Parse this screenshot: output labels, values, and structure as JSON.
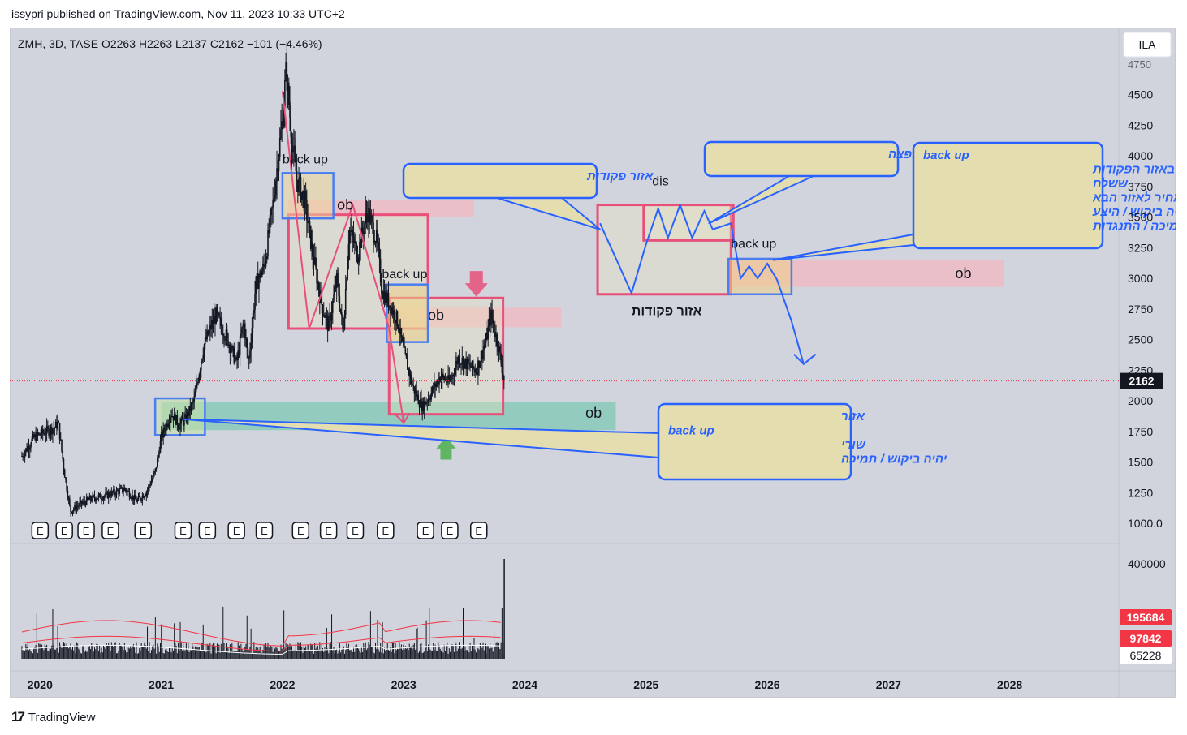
{
  "header": {
    "published": "issypri published on TradingView.com, Nov 11, 2023 10:33 UTC+2"
  },
  "footer": {
    "brand": "TradingView"
  },
  "chart_data": {
    "type": "candlestick",
    "legend_text": "ZMH, 3D, TASE  O2263  H2263  L2137  C2162  −101 (−4.46%)",
    "currency": "ILA",
    "ohlc": {
      "open": 2263,
      "high": 2263,
      "low": 2137,
      "close": 2162,
      "change": -101,
      "change_pct": -4.46
    },
    "last_price_label": "2162",
    "last_price": 2162,
    "price_axis": {
      "ticks": [
        4750,
        4500,
        4250,
        4000,
        3750,
        3500,
        3250,
        3000,
        2750,
        2500,
        2250,
        2000,
        1750,
        1500,
        1250,
        1000
      ],
      "tick_labels": [
        "4750",
        "4500",
        "4250",
        "4000",
        "3750",
        "3500",
        "3250",
        "3000",
        "2750",
        "2500",
        "2250",
        "2000",
        "1750",
        "1500",
        "1250",
        "1000.0"
      ]
    },
    "time_axis": {
      "labels": [
        "2020",
        "2021",
        "2022",
        "2023",
        "2024",
        "2025",
        "2026",
        "2027",
        "2028"
      ],
      "years": [
        2020,
        2021,
        2022,
        2023,
        2024,
        2025,
        2026,
        2027,
        2028
      ]
    },
    "price_path": [
      [
        2019.85,
        1550
      ],
      [
        2019.95,
        1700
      ],
      [
        2020.05,
        1750
      ],
      [
        2020.12,
        1780
      ],
      [
        2020.15,
        1820
      ],
      [
        2020.2,
        1420
      ],
      [
        2020.25,
        1100
      ],
      [
        2020.32,
        1150
      ],
      [
        2020.42,
        1200
      ],
      [
        2020.55,
        1230
      ],
      [
        2020.7,
        1280
      ],
      [
        2020.8,
        1180
      ],
      [
        2020.88,
        1260
      ],
      [
        2020.95,
        1420
      ],
      [
        2021.0,
        1700
      ],
      [
        2021.08,
        1900
      ],
      [
        2021.15,
        1800
      ],
      [
        2021.2,
        1850
      ],
      [
        2021.27,
        2000
      ],
      [
        2021.35,
        2450
      ],
      [
        2021.45,
        2700
      ],
      [
        2021.55,
        2500
      ],
      [
        2021.62,
        2300
      ],
      [
        2021.68,
        2650
      ],
      [
        2021.72,
        2300
      ],
      [
        2021.78,
        2950
      ],
      [
        2021.85,
        3100
      ],
      [
        2021.92,
        3600
      ],
      [
        2022.0,
        4300
      ],
      [
        2022.03,
        4700
      ],
      [
        2022.08,
        4100
      ],
      [
        2022.12,
        3800
      ],
      [
        2022.18,
        3650
      ],
      [
        2022.25,
        3200
      ],
      [
        2022.32,
        2800
      ],
      [
        2022.38,
        2600
      ],
      [
        2022.45,
        3000
      ],
      [
        2022.5,
        2550
      ],
      [
        2022.55,
        3400
      ],
      [
        2022.62,
        3200
      ],
      [
        2022.7,
        3550
      ],
      [
        2022.78,
        3300
      ],
      [
        2022.82,
        2900
      ],
      [
        2022.88,
        2800
      ],
      [
        2022.95,
        2650
      ],
      [
        2023.0,
        2400
      ],
      [
        2023.08,
        2100
      ],
      [
        2023.15,
        1950
      ],
      [
        2023.22,
        2050
      ],
      [
        2023.3,
        2200
      ],
      [
        2023.38,
        2150
      ],
      [
        2023.45,
        2350
      ],
      [
        2023.52,
        2300
      ],
      [
        2023.6,
        2250
      ],
      [
        2023.68,
        2500
      ],
      [
        2023.72,
        2700
      ],
      [
        2023.78,
        2450
      ],
      [
        2023.83,
        2162
      ]
    ],
    "volume": {
      "ticks": [
        400000
      ],
      "tick_labels": [
        "400000"
      ],
      "ma_labels": [
        "195684",
        "97842",
        "65228"
      ],
      "ma_colors": [
        "#f23645",
        "#f23645",
        "#ffffff"
      ],
      "peak": 420000,
      "last": 420000
    },
    "earnings_markers": [
      2020.0,
      2020.2,
      2020.38,
      2020.58,
      2020.85,
      2021.18,
      2021.38,
      2021.62,
      2021.85,
      2022.15,
      2022.38,
      2022.6,
      2022.85,
      2023.18,
      2023.38,
      2023.62
    ],
    "earnings_label": "E",
    "zones": [
      {
        "name": "ob-green",
        "x0": 2021.0,
        "x1": 2024.75,
        "y0": 1760,
        "y1": 1990,
        "color": "#7fc8b6",
        "label": "ob"
      },
      {
        "name": "ob-pink-top",
        "x0": 2022.05,
        "x1": 2023.58,
        "y0": 3500,
        "y1": 3640,
        "color": "#f2b8c2",
        "label": "ob"
      },
      {
        "name": "ob-pink-mid",
        "x0": 2022.88,
        "x1": 2024.3,
        "y0": 2600,
        "y1": 2760,
        "color": "#f2b8c2",
        "label": "ob"
      },
      {
        "name": "ob-pink-future",
        "x0": 2025.7,
        "x1": 2027.95,
        "y0": 2930,
        "y1": 3150,
        "color": "#f2b8c2",
        "label": "ob"
      }
    ],
    "annotations": [
      {
        "text": "back up",
        "x": 2022.0,
        "y": 3940
      },
      {
        "text": "back up",
        "x": 2022.82,
        "y": 3000
      },
      {
        "text": "back up",
        "x": 2025.7,
        "y": 3250
      },
      {
        "text": "dis",
        "x": 2025.05,
        "y": 3760
      },
      {
        "text": "ob",
        "x": 2022.45,
        "y": 3560
      },
      {
        "text": "ob",
        "x": 2023.2,
        "y": 2660
      },
      {
        "text": "ob",
        "x": 2024.5,
        "y": 1860
      },
      {
        "text": "ob",
        "x": 2027.55,
        "y": 3000
      },
      {
        "text": "אזור פקודות",
        "x": 2024.88,
        "y": 2700
      }
    ],
    "callouts": [
      {
        "name": "callout-order-zone",
        "lines": [
          "אזור פקודות"
        ]
      },
      {
        "name": "callout-disp",
        "lines": [
          "הפצה"
        ]
      },
      {
        "name": "callout-backup-future",
        "lines": [
          "back up",
          "האזור האחרון באזור הפקודות",
          "ששלח",
          "את המחיר לאזור הבא",
          "יהיה ביקוש / היצע",
          "תמיכה / התנגדות"
        ]
      },
      {
        "name": "callout-support",
        "lines": [
          "אזור",
          "back up",
          "שורי",
          "יהיה ביקוש / תמיכה"
        ]
      }
    ],
    "colors": {
      "background": "#d1d4dc",
      "candle": "#131722",
      "accent_blue": "#2962ff",
      "accent_pink": "#e8507a",
      "price_line": "#f23645",
      "callout_fill": "#e3ddb0"
    }
  }
}
